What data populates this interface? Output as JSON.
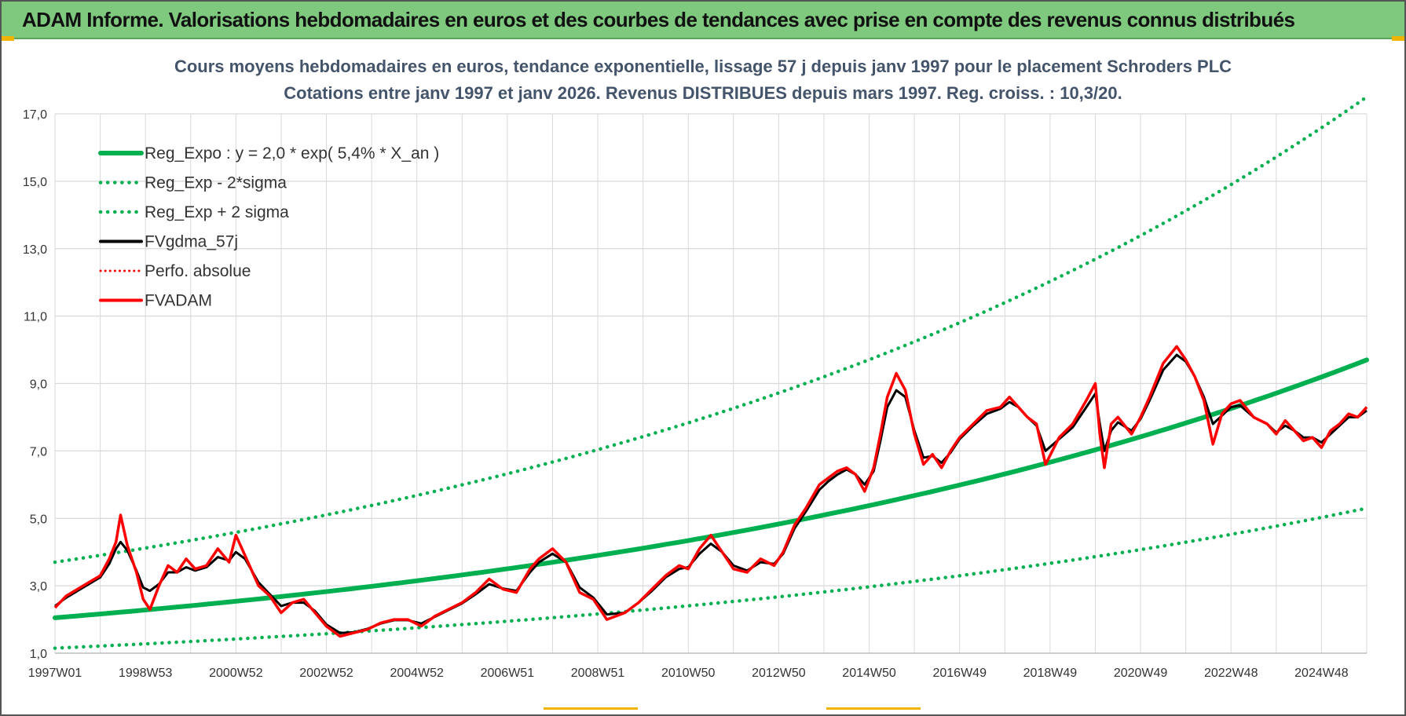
{
  "header": {
    "title": "ADAM Informe. Valorisations hebdomadaires en euros et des courbes de tendances avec prise en compte des revenus connus distribués"
  },
  "colors": {
    "banner": "#7fc97f",
    "accent_corner": "#f0b400",
    "green": "#00b050",
    "black": "#000000",
    "red": "#ff0000",
    "grid": "#d9d9d9",
    "title": "#44546a"
  },
  "chart_data": {
    "type": "line",
    "title_line1": "Cours moyens hebdomadaires en euros, tendance exponentielle, lissage 57 j depuis janv 1997  pour le placement Schroders PLC",
    "title_line2": "Cotations entre janv 1997 et janv 2026. Revenus DISTRIBUES depuis mars 1997.  Reg. croiss. : 10,3/20.",
    "xlabel": "",
    "ylabel": "",
    "x_range": [
      1997.0,
      2026.0
    ],
    "ylim": [
      1.0,
      17.0
    ],
    "y_ticks": [
      "1,0",
      "3,0",
      "5,0",
      "7,0",
      "9,0",
      "11,0",
      "13,0",
      "15,0",
      "17,0"
    ],
    "y_tick_values": [
      1,
      3,
      5,
      7,
      9,
      11,
      13,
      15,
      17
    ],
    "x_ticks": [
      "1997W01",
      "1998W53",
      "2000W52",
      "2002W52",
      "2004W52",
      "2006W51",
      "2008W51",
      "2010W50",
      "2012W50",
      "2014W50",
      "2016W49",
      "2018W49",
      "2020W49",
      "2022W48",
      "2024W48"
    ],
    "x_tick_values": [
      1997.0,
      1999.0,
      2001.0,
      2003.0,
      2005.0,
      2007.0,
      2009.0,
      2011.0,
      2013.0,
      2015.0,
      2017.0,
      2019.0,
      2021.0,
      2023.0,
      2025.0
    ],
    "grid": true,
    "legend_position": "top-left",
    "legend": [
      {
        "label": "Reg_Expo : y = 2,0 * exp( 5,4% *  X_an )",
        "style": "solid-thick",
        "color": "#00b050"
      },
      {
        "label": "Reg_Exp - 2*sigma",
        "style": "dotted",
        "color": "#00b050"
      },
      {
        "label": "Reg_Exp + 2 sigma",
        "style": "dotted",
        "color": "#00b050"
      },
      {
        "label": "FVgdma_57j",
        "style": "solid",
        "color": "#000000"
      },
      {
        "label": "Perfo. absolue",
        "style": "dotted-thin",
        "color": "#ff0000"
      },
      {
        "label": "FVADAM",
        "style": "solid",
        "color": "#ff0000"
      }
    ],
    "series": [
      {
        "name": "Reg_Expo : y = 2,0 * exp( 5,4% *  X_an )",
        "kind": "reg",
        "x": [
          1997.0,
          2026.0
        ],
        "y": [
          2.05,
          9.7
        ]
      },
      {
        "name": "Reg_Exp - 2*sigma",
        "kind": "reg_low",
        "x": [
          1997.0,
          2026.0
        ],
        "y": [
          1.15,
          5.3
        ]
      },
      {
        "name": "Reg_Exp + 2 sigma",
        "kind": "reg_high",
        "x": [
          1997.0,
          2026.0
        ],
        "y": [
          3.7,
          17.5
        ]
      },
      {
        "name": "FVADAM",
        "kind": "price",
        "x": [
          1997.0,
          1997.25,
          1997.5,
          1997.75,
          1998.0,
          1998.2,
          1998.35,
          1998.45,
          1998.6,
          1998.8,
          1998.95,
          1999.1,
          1999.3,
          1999.5,
          1999.7,
          1999.9,
          2000.1,
          2000.35,
          2000.6,
          2000.85,
          2001.0,
          2001.2,
          2001.5,
          2001.75,
          2002.0,
          2002.25,
          2002.5,
          2002.75,
          2003.0,
          2003.3,
          2003.6,
          2003.9,
          2004.2,
          2004.5,
          2004.8,
          2005.1,
          2005.4,
          2005.7,
          2006.0,
          2006.3,
          2006.6,
          2006.9,
          2007.2,
          2007.5,
          2007.7,
          2008.0,
          2008.3,
          2008.6,
          2008.9,
          2009.2,
          2009.6,
          2009.9,
          2010.2,
          2010.5,
          2010.8,
          2011.0,
          2011.25,
          2011.5,
          2011.75,
          2012.0,
          2012.3,
          2012.6,
          2012.9,
          2013.1,
          2013.35,
          2013.6,
          2013.9,
          2014.1,
          2014.3,
          2014.5,
          2014.7,
          2014.9,
          2015.1,
          2015.25,
          2015.4,
          2015.6,
          2015.8,
          2016.0,
          2016.2,
          2016.4,
          2016.6,
          2016.8,
          2017.0,
          2017.3,
          2017.6,
          2017.9,
          2018.1,
          2018.3,
          2018.5,
          2018.7,
          2018.9,
          2019.2,
          2019.5,
          2019.8,
          2020.0,
          2020.1,
          2020.2,
          2020.35,
          2020.5,
          2020.8,
          2021.0,
          2021.2,
          2021.5,
          2021.8,
          2022.0,
          2022.2,
          2022.4,
          2022.6,
          2022.8,
          2023.0,
          2023.2,
          2023.5,
          2023.8,
          2024.0,
          2024.2,
          2024.4,
          2024.6,
          2024.8,
          2025.0,
          2025.2,
          2025.4,
          2025.6,
          2025.8,
          2026.0
        ],
        "y": [
          2.35,
          2.7,
          2.9,
          3.1,
          3.3,
          3.8,
          4.3,
          5.1,
          4.2,
          3.4,
          2.6,
          2.3,
          3.0,
          3.6,
          3.4,
          3.8,
          3.5,
          3.6,
          4.1,
          3.7,
          4.5,
          3.9,
          3.0,
          2.7,
          2.2,
          2.5,
          2.6,
          2.2,
          1.8,
          1.5,
          1.6,
          1.7,
          1.9,
          2.0,
          2.0,
          1.8,
          2.1,
          2.3,
          2.5,
          2.8,
          3.2,
          2.9,
          2.8,
          3.5,
          3.8,
          4.1,
          3.7,
          2.8,
          2.6,
          2.0,
          2.2,
          2.5,
          2.9,
          3.3,
          3.6,
          3.5,
          4.1,
          4.5,
          4.0,
          3.5,
          3.4,
          3.8,
          3.6,
          4.0,
          4.8,
          5.3,
          6.0,
          6.2,
          6.4,
          6.5,
          6.3,
          5.8,
          6.5,
          7.5,
          8.6,
          9.3,
          8.8,
          7.5,
          6.6,
          6.9,
          6.5,
          7.0,
          7.4,
          7.8,
          8.2,
          8.3,
          8.6,
          8.3,
          8.0,
          7.8,
          6.6,
          7.4,
          7.8,
          8.5,
          9.0,
          7.5,
          6.5,
          7.8,
          8.0,
          7.5,
          8.0,
          8.6,
          9.6,
          10.1,
          9.7,
          9.2,
          8.5,
          7.2,
          8.1,
          8.4,
          8.5,
          8.0,
          7.8,
          7.5,
          7.9,
          7.6,
          7.3,
          7.4,
          7.1,
          7.6,
          7.8,
          8.1,
          8.0,
          8.3
        ]
      },
      {
        "name": "FVgdma_57j",
        "kind": "smooth",
        "x": [
          1997.0,
          1997.25,
          1997.5,
          1997.75,
          1998.0,
          1998.2,
          1998.35,
          1998.45,
          1998.6,
          1998.8,
          1998.95,
          1999.1,
          1999.3,
          1999.5,
          1999.7,
          1999.9,
          2000.1,
          2000.35,
          2000.6,
          2000.85,
          2001.0,
          2001.2,
          2001.5,
          2001.75,
          2002.0,
          2002.25,
          2002.5,
          2002.75,
          2003.0,
          2003.3,
          2003.6,
          2003.9,
          2004.2,
          2004.5,
          2004.8,
          2005.1,
          2005.4,
          2005.7,
          2006.0,
          2006.3,
          2006.6,
          2006.9,
          2007.2,
          2007.5,
          2007.7,
          2008.0,
          2008.3,
          2008.6,
          2008.9,
          2009.2,
          2009.6,
          2009.9,
          2010.2,
          2010.5,
          2010.8,
          2011.0,
          2011.25,
          2011.5,
          2011.75,
          2012.0,
          2012.3,
          2012.6,
          2012.9,
          2013.1,
          2013.35,
          2013.6,
          2013.9,
          2014.1,
          2014.3,
          2014.5,
          2014.7,
          2014.9,
          2015.1,
          2015.25,
          2015.4,
          2015.6,
          2015.8,
          2016.0,
          2016.2,
          2016.4,
          2016.6,
          2016.8,
          2017.0,
          2017.3,
          2017.6,
          2017.9,
          2018.1,
          2018.3,
          2018.5,
          2018.7,
          2018.9,
          2019.2,
          2019.5,
          2019.8,
          2020.0,
          2020.1,
          2020.2,
          2020.35,
          2020.5,
          2020.8,
          2021.0,
          2021.2,
          2021.5,
          2021.8,
          2022.0,
          2022.2,
          2022.4,
          2022.6,
          2022.8,
          2023.0,
          2023.2,
          2023.5,
          2023.8,
          2024.0,
          2024.2,
          2024.4,
          2024.6,
          2024.8,
          2025.0,
          2025.2,
          2025.4,
          2025.6,
          2025.8,
          2026.0
        ],
        "y": [
          2.4,
          2.65,
          2.85,
          3.05,
          3.25,
          3.65,
          4.1,
          4.3,
          4.05,
          3.45,
          2.95,
          2.85,
          3.05,
          3.4,
          3.4,
          3.55,
          3.45,
          3.55,
          3.85,
          3.75,
          4.0,
          3.8,
          3.1,
          2.75,
          2.4,
          2.5,
          2.5,
          2.25,
          1.85,
          1.6,
          1.62,
          1.72,
          1.88,
          1.98,
          1.98,
          1.88,
          2.08,
          2.28,
          2.48,
          2.75,
          3.05,
          2.92,
          2.85,
          3.4,
          3.7,
          3.95,
          3.7,
          2.95,
          2.65,
          2.15,
          2.2,
          2.5,
          2.85,
          3.25,
          3.5,
          3.55,
          3.95,
          4.25,
          4.0,
          3.6,
          3.45,
          3.7,
          3.65,
          3.95,
          4.7,
          5.2,
          5.85,
          6.1,
          6.3,
          6.45,
          6.3,
          6.0,
          6.4,
          7.3,
          8.3,
          8.8,
          8.6,
          7.6,
          6.8,
          6.85,
          6.65,
          6.95,
          7.35,
          7.75,
          8.1,
          8.25,
          8.45,
          8.3,
          8.0,
          7.75,
          7.0,
          7.35,
          7.7,
          8.3,
          8.7,
          7.8,
          7.0,
          7.6,
          7.85,
          7.6,
          7.95,
          8.5,
          9.4,
          9.85,
          9.65,
          9.2,
          8.6,
          7.8,
          8.05,
          8.3,
          8.35,
          8.0,
          7.8,
          7.55,
          7.75,
          7.6,
          7.4,
          7.4,
          7.25,
          7.5,
          7.75,
          8.0,
          8.0,
          8.2
        ]
      }
    ]
  }
}
